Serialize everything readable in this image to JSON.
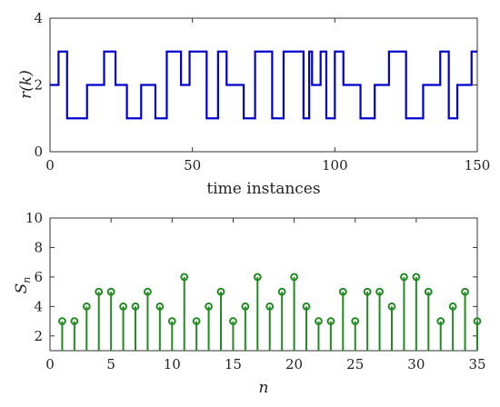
{
  "chart_data": [
    {
      "type": "line",
      "style": "step",
      "xlabel": "time instances",
      "ylabel": "r(k)",
      "xlim": [
        0,
        150
      ],
      "ylim": [
        0,
        4
      ],
      "xticks": [
        "0",
        "50",
        "100",
        "150"
      ],
      "yticks": [
        "0",
        "2",
        "4"
      ],
      "color": "#0000cc",
      "grid": false,
      "x": [
        0,
        3,
        3,
        6,
        6,
        13,
        13,
        19,
        19,
        23,
        23,
        27,
        27,
        32,
        32,
        37,
        37,
        41,
        41,
        46,
        46,
        49,
        49,
        55,
        55,
        59,
        59,
        62,
        62,
        68,
        68,
        72,
        72,
        78,
        78,
        82,
        82,
        89,
        89,
        91,
        91,
        92,
        92,
        95,
        95,
        97,
        97,
        100,
        100,
        103,
        103,
        109,
        109,
        114,
        114,
        119,
        119,
        125,
        125,
        131,
        131,
        137,
        137,
        140,
        140,
        143,
        143,
        148,
        148,
        150
      ],
      "y": [
        2,
        2,
        3,
        3,
        1,
        1,
        2,
        2,
        3,
        3,
        2,
        2,
        1,
        1,
        2,
        2,
        1,
        1,
        3,
        3,
        2,
        2,
        3,
        3,
        1,
        1,
        3,
        3,
        2,
        2,
        1,
        1,
        3,
        3,
        1,
        1,
        3,
        3,
        1,
        1,
        3,
        3,
        2,
        2,
        3,
        3,
        1,
        1,
        3,
        3,
        2,
        2,
        1,
        1,
        2,
        2,
        3,
        3,
        1,
        1,
        2,
        2,
        3,
        3,
        1,
        1,
        2,
        2,
        3,
        3
      ]
    },
    {
      "type": "stem",
      "xlabel": "n",
      "ylabel": "S",
      "ylabel_sub": "n",
      "xlim": [
        0,
        35
      ],
      "ylim": [
        1,
        10
      ],
      "xticks": [
        "0",
        "5",
        "10",
        "15",
        "20",
        "25",
        "30",
        "35"
      ],
      "yticks": [
        "2",
        "4",
        "6",
        "8",
        "10"
      ],
      "color": "#228b22",
      "grid": false,
      "x": [
        1,
        2,
        3,
        4,
        5,
        6,
        7,
        8,
        9,
        10,
        11,
        12,
        13,
        14,
        15,
        16,
        17,
        18,
        19,
        20,
        21,
        22,
        23,
        24,
        25,
        26,
        27,
        28,
        29,
        30,
        31,
        32,
        33,
        34,
        35
      ],
      "values": [
        3,
        3,
        4,
        5,
        5,
        4,
        4,
        5,
        4,
        3,
        6,
        3,
        4,
        5,
        3,
        4,
        6,
        4,
        5,
        6,
        4,
        3,
        3,
        5,
        3,
        5,
        5,
        4,
        6,
        6,
        5,
        3,
        4,
        5,
        3
      ]
    }
  ]
}
